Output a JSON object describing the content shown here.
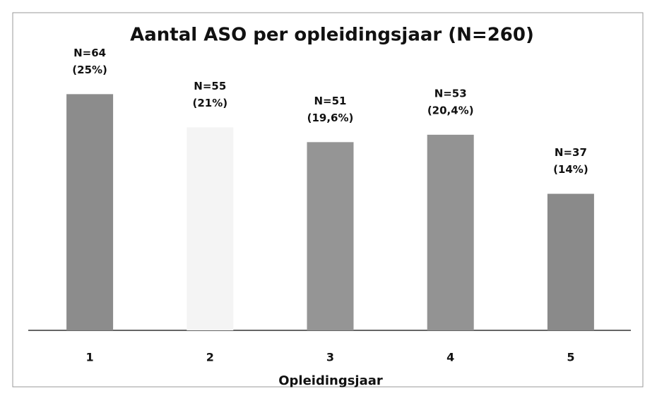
{
  "chart_data": {
    "type": "bar",
    "title": "Aantal ASO per opleidingsjaar (N=260)",
    "x_label": "Opleidingsjaar",
    "categories": [
      "1",
      "2",
      "3",
      "4",
      "5"
    ],
    "values": [
      64,
      55,
      51,
      53,
      37
    ],
    "value_labels": [
      "N=64",
      "N=55",
      "N=51",
      "N=53",
      "N=37"
    ],
    "shares": [
      25,
      21,
      19.6,
      20.4,
      14
    ],
    "share_labels": [
      "(25%)",
      "(21%)",
      "(19,6%)",
      "(20,4%)",
      "(14%)"
    ],
    "colors": [
      "#8c8c8c",
      "#f4f4f4",
      "#959595",
      "#939393",
      "#8a8a8a"
    ],
    "ylim": [
      0,
      70
    ]
  }
}
